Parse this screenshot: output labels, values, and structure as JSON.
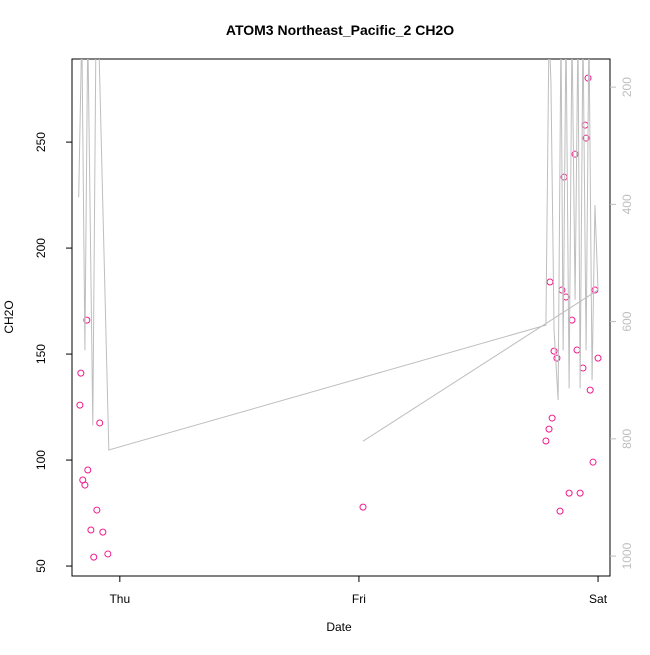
{
  "chart_data": {
    "type": "scatter",
    "title": "ATOM3 Northeast_Pacific_2 CH2O",
    "xlabel": "Date",
    "ylabel": "CH2O",
    "xlim": [
      -0.2,
      2.05
    ],
    "xticks": [
      {
        "value": 0,
        "label": "Thu"
      },
      {
        "value": 1,
        "label": "Fri"
      },
      {
        "value": 2,
        "label": "Sat"
      }
    ],
    "ylim": [
      45.3,
      289.2
    ],
    "yticks": [
      50,
      100,
      150,
      200,
      250
    ],
    "y2lim": [
      1034,
      152
    ],
    "y2ticks": [
      200,
      400,
      600,
      800,
      1000
    ],
    "series": [
      {
        "type": "scatter",
        "color": "#ee1c8c",
        "x": [
          -0.167,
          -0.163,
          -0.155,
          -0.146,
          -0.138,
          -0.134,
          -0.121,
          -0.109,
          -0.096,
          -0.084,
          -0.071,
          -0.05,
          1.017,
          1.782,
          1.795,
          1.799,
          1.808,
          1.816,
          1.828,
          1.841,
          1.849,
          1.858,
          1.866,
          1.879,
          1.891,
          1.904,
          1.912,
          1.925,
          1.937,
          1.946,
          1.95,
          1.958,
          1.967,
          1.979,
          1.987,
          2.0
        ],
        "values": [
          125.9,
          141,
          90.6,
          88.2,
          166,
          95.3,
          67,
          54.2,
          76.4,
          117.5,
          66,
          55.7,
          77.8,
          109,
          114.6,
          184,
          119.8,
          151.4,
          148.1,
          75.9,
          180.2,
          233.5,
          176.9,
          84.4,
          166,
          244.3,
          151.9,
          84.4,
          143.4,
          258,
          251.9,
          280.2,
          133,
          99,
          180.2,
          148.1
        ]
      },
      {
        "type": "line",
        "axis": "y2",
        "color": "#bebebe",
        "x": [
          -0.172,
          -0.159,
          -0.146,
          -0.134,
          -0.113,
          -0.1,
          -0.088,
          -0.046,
          1.782,
          1.795,
          1.803,
          1.816,
          1.833,
          1.845,
          1.854,
          1.866,
          1.879,
          1.891,
          1.904,
          1.916,
          1.925,
          1.937,
          1.95,
          1.962,
          1.975,
          1.987,
          2.0,
          1.017
        ],
        "values": [
          388,
          100,
          649,
          100,
          777,
          120,
          120,
          819,
          606,
          100,
          191,
          615,
          734,
          100,
          649,
          100,
          714,
          100,
          563,
          100,
          714,
          100,
          649,
          100,
          700,
          401,
          546,
          804
        ]
      }
    ]
  }
}
